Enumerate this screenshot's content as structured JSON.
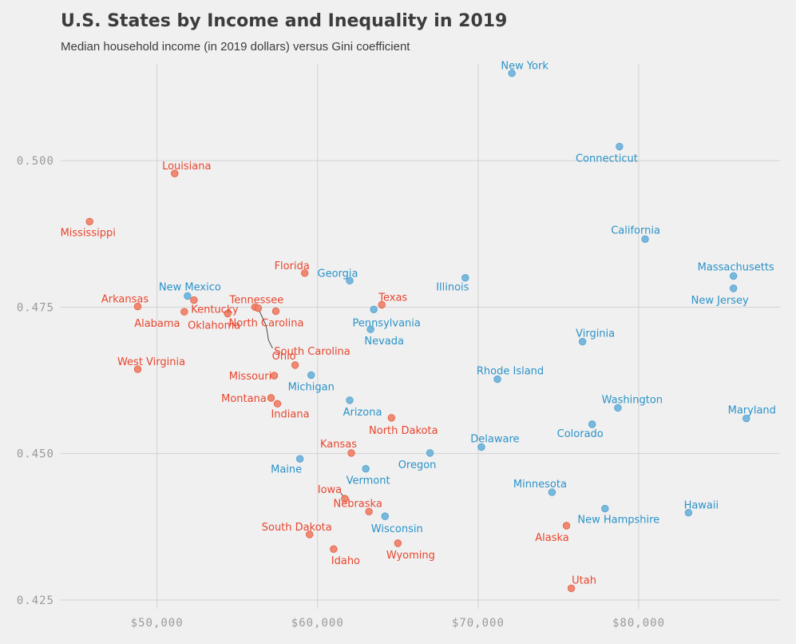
{
  "chart_data": {
    "type": "scatter",
    "title": "U.S. States by Income and Inequality in 2019",
    "subtitle": "Median household income (in 2019 dollars) versus Gini coefficient",
    "xlabel": "",
    "ylabel": "",
    "xlim": [
      44000,
      88800
    ],
    "ylim": [
      0.4235,
      0.5165
    ],
    "x_ticks": [
      50000,
      60000,
      70000,
      80000
    ],
    "x_tick_labels": [
      "$50,000",
      "$60,000",
      "$70,000",
      "$80,000"
    ],
    "y_ticks": [
      0.425,
      0.45,
      0.475,
      0.5
    ],
    "y_tick_labels": [
      "0.425",
      "0.450",
      "0.475",
      "0.500"
    ],
    "grid": true,
    "colors": {
      "red_group": "#e8452e",
      "blue_group": "#2a92c8",
      "red_point": "#f0826b",
      "blue_point": "#72b4db"
    },
    "points": [
      {
        "label": "New York",
        "x": 72100,
        "y": 0.5149,
        "group": "blue"
      },
      {
        "label": "Connecticut",
        "x": 78800,
        "y": 0.5024,
        "group": "blue"
      },
      {
        "label": "Louisiana",
        "x": 51100,
        "y": 0.4978,
        "group": "red"
      },
      {
        "label": "Mississippi",
        "x": 45800,
        "y": 0.4896,
        "group": "red"
      },
      {
        "label": "California",
        "x": 80400,
        "y": 0.4866,
        "group": "blue"
      },
      {
        "label": "Florida",
        "x": 59200,
        "y": 0.4808,
        "group": "red"
      },
      {
        "label": "Massachusetts",
        "x": 85900,
        "y": 0.4803,
        "group": "blue"
      },
      {
        "label": "Illinois",
        "x": 69200,
        "y": 0.48,
        "group": "blue"
      },
      {
        "label": "Georgia",
        "x": 62000,
        "y": 0.4795,
        "group": "blue"
      },
      {
        "label": "New Jersey",
        "x": 85900,
        "y": 0.4782,
        "group": "blue"
      },
      {
        "label": "New Mexico",
        "x": 51900,
        "y": 0.4769,
        "group": "blue"
      },
      {
        "label": "Kentucky",
        "x": 52300,
        "y": 0.4762,
        "group": "red"
      },
      {
        "label": "Texas",
        "x": 64000,
        "y": 0.4754,
        "group": "red"
      },
      {
        "label": "Arkansas",
        "x": 48800,
        "y": 0.4751,
        "group": "red"
      },
      {
        "label": "Tennessee",
        "x": 56100,
        "y": 0.475,
        "group": "red"
      },
      {
        "label": "South Carolina",
        "x": 56300,
        "y": 0.4748,
        "group": "red"
      },
      {
        "label": "Pennsylvania",
        "x": 63500,
        "y": 0.4746,
        "group": "blue"
      },
      {
        "label": "North Carolina",
        "x": 57400,
        "y": 0.4743,
        "group": "red"
      },
      {
        "label": "Alabama",
        "x": 51700,
        "y": 0.4742,
        "group": "red"
      },
      {
        "label": "Oklahoma",
        "x": 54400,
        "y": 0.4739,
        "group": "red"
      },
      {
        "label": "Nevada",
        "x": 63300,
        "y": 0.4712,
        "group": "blue"
      },
      {
        "label": "Virginia",
        "x": 76500,
        "y": 0.4691,
        "group": "blue"
      },
      {
        "label": "Ohio",
        "x": 58600,
        "y": 0.4651,
        "group": "red"
      },
      {
        "label": "West Virginia",
        "x": 48800,
        "y": 0.4644,
        "group": "red"
      },
      {
        "label": "Michigan",
        "x": 59600,
        "y": 0.4634,
        "group": "blue"
      },
      {
        "label": "Missouri",
        "x": 57300,
        "y": 0.4633,
        "group": "red"
      },
      {
        "label": "Rhode Island",
        "x": 71200,
        "y": 0.4627,
        "group": "blue"
      },
      {
        "label": "Montana",
        "x": 57100,
        "y": 0.4595,
        "group": "red"
      },
      {
        "label": "Arizona",
        "x": 62000,
        "y": 0.4591,
        "group": "blue"
      },
      {
        "label": "Indiana",
        "x": 57500,
        "y": 0.4585,
        "group": "red"
      },
      {
        "label": "Washington",
        "x": 78700,
        "y": 0.4578,
        "group": "blue"
      },
      {
        "label": "North Dakota",
        "x": 64600,
        "y": 0.4561,
        "group": "red"
      },
      {
        "label": "Maryland",
        "x": 86700,
        "y": 0.456,
        "group": "blue"
      },
      {
        "label": "Colorado",
        "x": 77100,
        "y": 0.455,
        "group": "blue"
      },
      {
        "label": "Delaware",
        "x": 70200,
        "y": 0.4511,
        "group": "blue"
      },
      {
        "label": "Kansas",
        "x": 62100,
        "y": 0.4501,
        "group": "red"
      },
      {
        "label": "Oregon",
        "x": 67000,
        "y": 0.4501,
        "group": "blue"
      },
      {
        "label": "Maine",
        "x": 58900,
        "y": 0.4491,
        "group": "blue"
      },
      {
        "label": "Vermont",
        "x": 63000,
        "y": 0.4474,
        "group": "blue"
      },
      {
        "label": "Minnesota",
        "x": 74600,
        "y": 0.4434,
        "group": "blue"
      },
      {
        "label": "Iowa",
        "x": 61700,
        "y": 0.4423,
        "group": "red"
      },
      {
        "label": "New Hampshire",
        "x": 77900,
        "y": 0.4406,
        "group": "blue"
      },
      {
        "label": "Nebraska",
        "x": 63200,
        "y": 0.4401,
        "group": "red"
      },
      {
        "label": "Hawaii",
        "x": 83100,
        "y": 0.4399,
        "group": "blue"
      },
      {
        "label": "Wisconsin",
        "x": 64200,
        "y": 0.4393,
        "group": "blue"
      },
      {
        "label": "Alaska",
        "x": 75500,
        "y": 0.4377,
        "group": "red"
      },
      {
        "label": "South Dakota",
        "x": 59500,
        "y": 0.4362,
        "group": "red"
      },
      {
        "label": "Wyoming",
        "x": 65000,
        "y": 0.4347,
        "group": "red"
      },
      {
        "label": "Idaho",
        "x": 61000,
        "y": 0.4337,
        "group": "red"
      },
      {
        "label": "Utah",
        "x": 75800,
        "y": 0.427,
        "group": "red"
      }
    ]
  }
}
